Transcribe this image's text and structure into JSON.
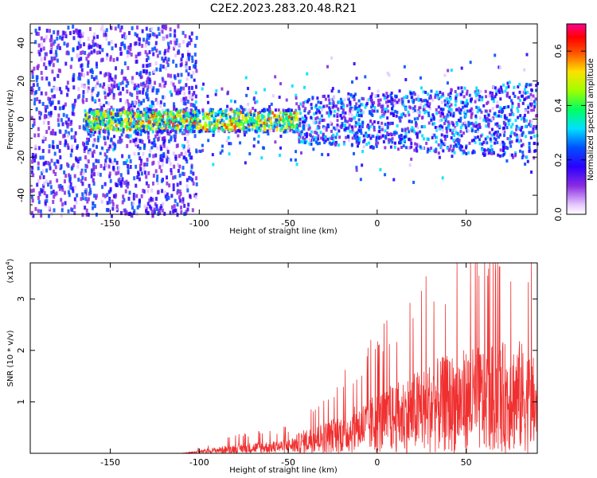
{
  "title": "C2E2.2023.283.20.48.R21",
  "colors": {
    "snr_line": "#f03030",
    "frame": "#000000"
  },
  "chart_data": [
    {
      "type": "heatmap",
      "xlabel": "Height of straight line (km)",
      "ylabel": "Frequency (Hz)",
      "xlim": [
        -195,
        90
      ],
      "ylim": [
        -50,
        50
      ],
      "x_ticks": [
        -150,
        -100,
        -50,
        0,
        50
      ],
      "y_ticks": [
        40,
        20,
        0,
        -20,
        -40
      ],
      "colorbar": {
        "label": "Normalized spectral amplitude",
        "range": [
          0.0,
          0.7
        ],
        "ticks": [
          0.0,
          0.2,
          0.4,
          0.6
        ],
        "colormap": "rainbow (white → purple → blue → cyan → green → yellow → red → magenta)"
      },
      "notes": {
        "noise_region_km": [
          -195,
          -105
        ],
        "blank_region_km": [
          -105,
          -45
        ],
        "signal_band_hz": [
          -8,
          8
        ]
      }
    },
    {
      "type": "line",
      "xlabel": "Height of straight line (km)",
      "ylabel": "SNR (10 * v/v)",
      "multiplier_label": "(x10",
      "multiplier_exp": "4",
      "xlim": [
        -195,
        90
      ],
      "ylim": [
        0,
        37000
      ],
      "x_ticks": [
        -150,
        -100,
        -50,
        0,
        50
      ],
      "y_ticks": [
        1,
        2,
        3
      ],
      "envelope": {
        "x": [
          -195,
          -110,
          -100,
          -90,
          -80,
          -70,
          -60,
          -50,
          -40,
          -30,
          -20,
          -10,
          0,
          10,
          20,
          30,
          40,
          50,
          60,
          70,
          80,
          90
        ],
        "y": [
          0,
          0,
          1000,
          2000,
          3000,
          3500,
          4000,
          4500,
          8000,
          10000,
          13000,
          16000,
          20000,
          23000,
          26000,
          30000,
          32000,
          34000,
          35000,
          36000,
          37000,
          30000
        ]
      }
    }
  ]
}
